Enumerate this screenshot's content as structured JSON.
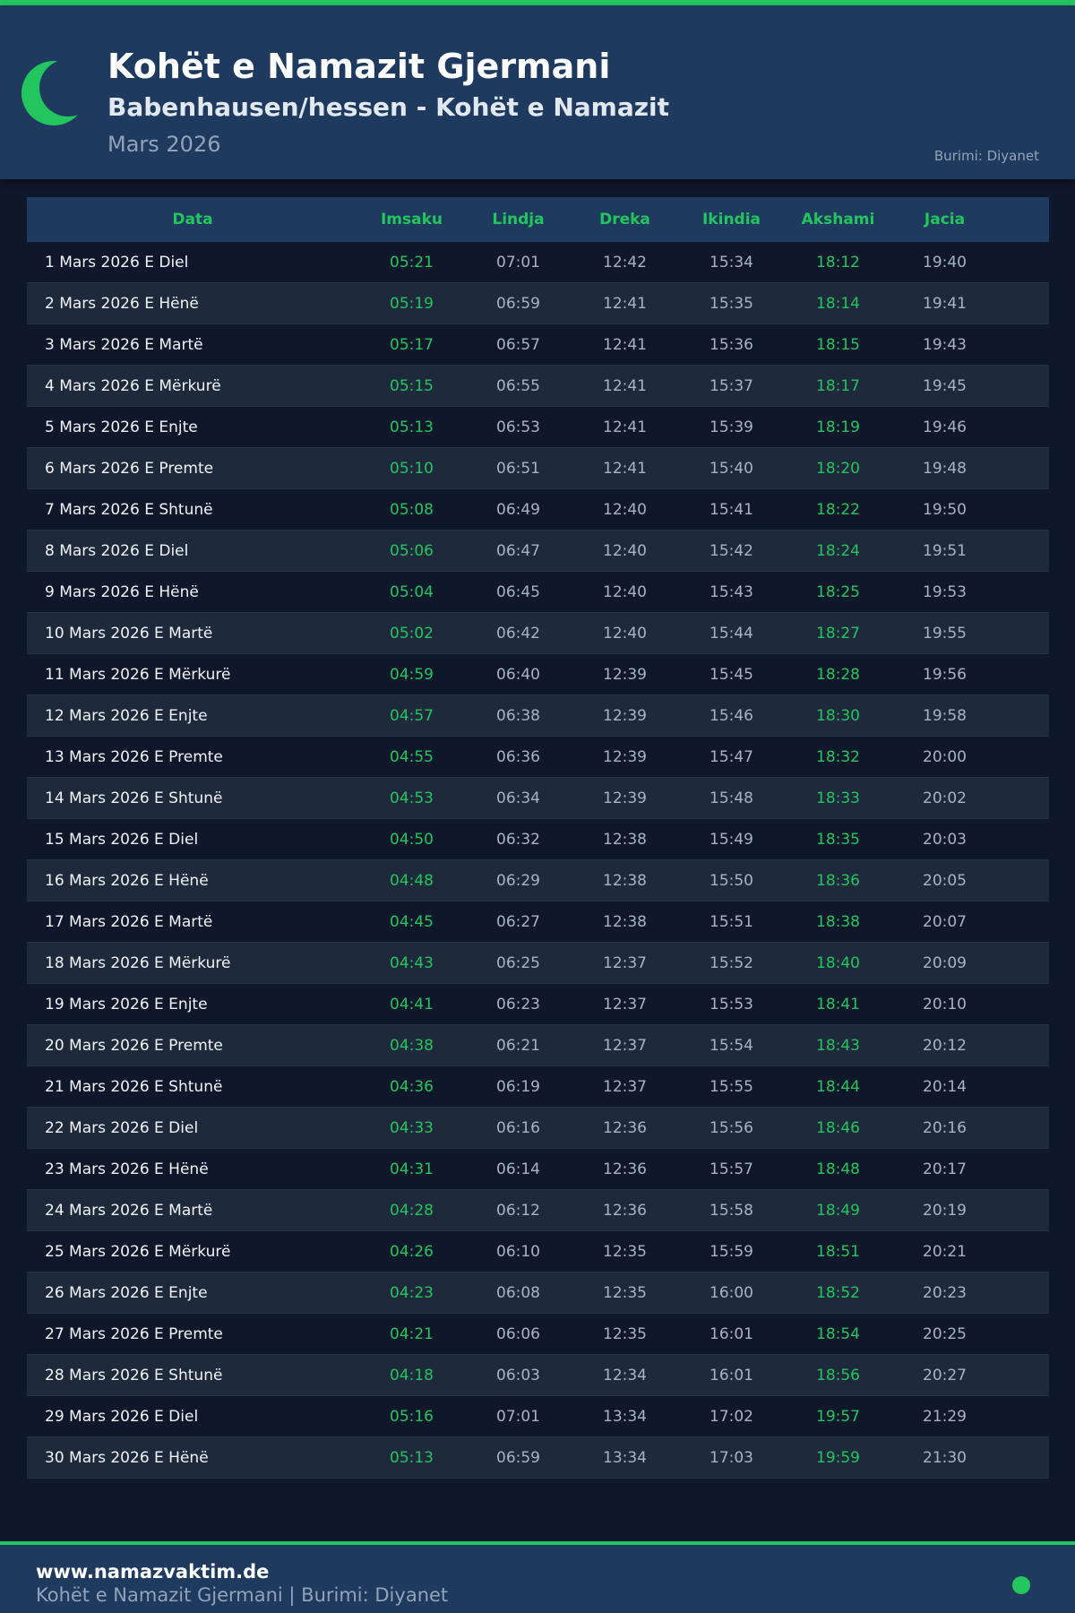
{
  "header": {
    "title": "Kohët e Namazit Gjermani",
    "subtitle": "Babenhausen/hessen - Kohët e Namazit",
    "month": "Mars 2026",
    "source": "Burimi: Diyanet",
    "icon": "crescent-moon-icon"
  },
  "colors": {
    "accent": "#22c55e",
    "header_bg": "#1e3a5f",
    "page_bg": "#0f172a",
    "alt_row": "#1e293b"
  },
  "table": {
    "columns": [
      "Data",
      "Imsaku",
      "Lindja",
      "Dreka",
      "Ikindia",
      "Akshami",
      "Jacia"
    ],
    "rows": [
      [
        "1 Mars 2026 E Diel",
        "05:21",
        "07:01",
        "12:42",
        "15:34",
        "18:12",
        "19:40"
      ],
      [
        "2 Mars 2026 E Hënë",
        "05:19",
        "06:59",
        "12:41",
        "15:35",
        "18:14",
        "19:41"
      ],
      [
        "3 Mars 2026 E Martë",
        "05:17",
        "06:57",
        "12:41",
        "15:36",
        "18:15",
        "19:43"
      ],
      [
        "4 Mars 2026 E Mërkurë",
        "05:15",
        "06:55",
        "12:41",
        "15:37",
        "18:17",
        "19:45"
      ],
      [
        "5 Mars 2026 E Enjte",
        "05:13",
        "06:53",
        "12:41",
        "15:39",
        "18:19",
        "19:46"
      ],
      [
        "6 Mars 2026 E Premte",
        "05:10",
        "06:51",
        "12:41",
        "15:40",
        "18:20",
        "19:48"
      ],
      [
        "7 Mars 2026 E Shtunë",
        "05:08",
        "06:49",
        "12:40",
        "15:41",
        "18:22",
        "19:50"
      ],
      [
        "8 Mars 2026 E Diel",
        "05:06",
        "06:47",
        "12:40",
        "15:42",
        "18:24",
        "19:51"
      ],
      [
        "9 Mars 2026 E Hënë",
        "05:04",
        "06:45",
        "12:40",
        "15:43",
        "18:25",
        "19:53"
      ],
      [
        "10 Mars 2026 E Martë",
        "05:02",
        "06:42",
        "12:40",
        "15:44",
        "18:27",
        "19:55"
      ],
      [
        "11 Mars 2026 E Mërkurë",
        "04:59",
        "06:40",
        "12:39",
        "15:45",
        "18:28",
        "19:56"
      ],
      [
        "12 Mars 2026 E Enjte",
        "04:57",
        "06:38",
        "12:39",
        "15:46",
        "18:30",
        "19:58"
      ],
      [
        "13 Mars 2026 E Premte",
        "04:55",
        "06:36",
        "12:39",
        "15:47",
        "18:32",
        "20:00"
      ],
      [
        "14 Mars 2026 E Shtunë",
        "04:53",
        "06:34",
        "12:39",
        "15:48",
        "18:33",
        "20:02"
      ],
      [
        "15 Mars 2026 E Diel",
        "04:50",
        "06:32",
        "12:38",
        "15:49",
        "18:35",
        "20:03"
      ],
      [
        "16 Mars 2026 E Hënë",
        "04:48",
        "06:29",
        "12:38",
        "15:50",
        "18:36",
        "20:05"
      ],
      [
        "17 Mars 2026 E Martë",
        "04:45",
        "06:27",
        "12:38",
        "15:51",
        "18:38",
        "20:07"
      ],
      [
        "18 Mars 2026 E Mërkurë",
        "04:43",
        "06:25",
        "12:37",
        "15:52",
        "18:40",
        "20:09"
      ],
      [
        "19 Mars 2026 E Enjte",
        "04:41",
        "06:23",
        "12:37",
        "15:53",
        "18:41",
        "20:10"
      ],
      [
        "20 Mars 2026 E Premte",
        "04:38",
        "06:21",
        "12:37",
        "15:54",
        "18:43",
        "20:12"
      ],
      [
        "21 Mars 2026 E Shtunë",
        "04:36",
        "06:19",
        "12:37",
        "15:55",
        "18:44",
        "20:14"
      ],
      [
        "22 Mars 2026 E Diel",
        "04:33",
        "06:16",
        "12:36",
        "15:56",
        "18:46",
        "20:16"
      ],
      [
        "23 Mars 2026 E Hënë",
        "04:31",
        "06:14",
        "12:36",
        "15:57",
        "18:48",
        "20:17"
      ],
      [
        "24 Mars 2026 E Martë",
        "04:28",
        "06:12",
        "12:36",
        "15:58",
        "18:49",
        "20:19"
      ],
      [
        "25 Mars 2026 E Mërkurë",
        "04:26",
        "06:10",
        "12:35",
        "15:59",
        "18:51",
        "20:21"
      ],
      [
        "26 Mars 2026 E Enjte",
        "04:23",
        "06:08",
        "12:35",
        "16:00",
        "18:52",
        "20:23"
      ],
      [
        "27 Mars 2026 E Premte",
        "04:21",
        "06:06",
        "12:35",
        "16:01",
        "18:54",
        "20:25"
      ],
      [
        "28 Mars 2026 E Shtunë",
        "04:18",
        "06:03",
        "12:34",
        "16:01",
        "18:56",
        "20:27"
      ],
      [
        "29 Mars 2026 E Diel",
        "05:16",
        "07:01",
        "13:34",
        "17:02",
        "19:57",
        "21:29"
      ],
      [
        "30 Mars 2026 E Hënë",
        "05:13",
        "06:59",
        "13:34",
        "17:03",
        "19:59",
        "21:30"
      ]
    ]
  },
  "footer": {
    "site": "www.namazvaktim.de",
    "text": "Kohët e Namazit Gjermani | Burimi: Diyanet"
  }
}
